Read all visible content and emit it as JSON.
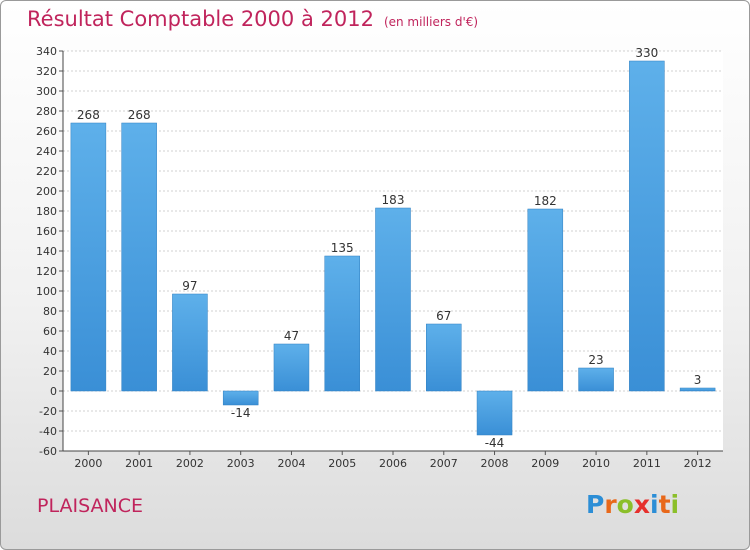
{
  "header": {
    "title": "Résultat Comptable 2000 à 2012",
    "subtitle": "(en milliers d'€)"
  },
  "commune": "PLAISANCE",
  "logo": {
    "text": "Proxiti",
    "letters": [
      {
        "ch": "P",
        "color": "#2c8ed6"
      },
      {
        "ch": "r",
        "color": "#e8681a"
      },
      {
        "ch": "o",
        "color": "#8bbf2a"
      },
      {
        "ch": "x",
        "color": "#e6302d"
      },
      {
        "ch": "i",
        "color": "#2c8ed6"
      },
      {
        "ch": "t",
        "color": "#e8681a"
      },
      {
        "ch": "i",
        "color": "#8bbf2a"
      }
    ]
  },
  "chart_data": {
    "type": "bar",
    "categories": [
      "2000",
      "2001",
      "2002",
      "2003",
      "2004",
      "2005",
      "2006",
      "2007",
      "2008",
      "2009",
      "2010",
      "2011",
      "2012"
    ],
    "values": [
      268,
      268,
      97,
      -14,
      47,
      135,
      183,
      67,
      -44,
      182,
      23,
      330,
      3
    ],
    "data_labels": [
      "268",
      "268",
      "97",
      "-14",
      "47",
      "135",
      "183",
      "67",
      "-44",
      "182",
      "23",
      "330",
      "3"
    ],
    "ylim": [
      -60,
      340
    ],
    "yticks": [
      -60,
      -40,
      -20,
      0,
      20,
      40,
      60,
      80,
      100,
      120,
      140,
      160,
      180,
      200,
      220,
      240,
      260,
      280,
      300,
      320,
      340
    ],
    "grid": true,
    "bar_color": "#3a8fd6",
    "bar_color_light": "#5eb0ea"
  }
}
